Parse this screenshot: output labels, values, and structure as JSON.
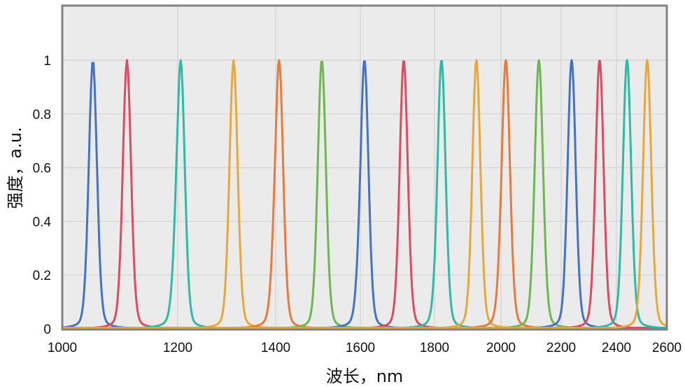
{
  "chart_data": {
    "type": "line",
    "title": "",
    "xlabel": "波长，nm",
    "ylabel": "强度，a.u.",
    "xlim": [
      1000,
      2600
    ],
    "ylim": [
      0,
      1.2
    ],
    "x_ticks": [
      "1000",
      "1200",
      "1400",
      "1600",
      "1800",
      "2000",
      "2200",
      "2400",
      "2600"
    ],
    "x_tick_values": [
      1000,
      1200,
      1400,
      1600,
      1800,
      2000,
      2200,
      2400,
      2600
    ],
    "y_ticks": [
      "0",
      "0.2",
      "0.4",
      "0.6",
      "0.8",
      "1"
    ],
    "y_tick_values": [
      0,
      0.2,
      0.4,
      0.6,
      0.8,
      1
    ],
    "x_scale": "nonuniform",
    "grid": true,
    "legend": "none",
    "plot_background": "#EBEBEB",
    "series": [
      {
        "peak": 1053,
        "fwhm": 17,
        "height": 1,
        "color": "#4472C4"
      },
      {
        "peak": 1112,
        "fwhm": 17,
        "height": 1,
        "color": "#DC4B5E"
      },
      {
        "peak": 1206,
        "fwhm": 20,
        "height": 1,
        "color": "#2BBBA6"
      },
      {
        "peak": 1314,
        "fwhm": 20,
        "height": 1,
        "color": "#E8A93A"
      },
      {
        "peak": 1408,
        "fwhm": 23,
        "height": 1,
        "color": "#E67B3D"
      },
      {
        "peak": 1509,
        "fwhm": 23,
        "height": 1,
        "color": "#6CB84E"
      },
      {
        "peak": 1611,
        "fwhm": 26,
        "height": 1,
        "color": "#4472C4"
      },
      {
        "peak": 1717,
        "fwhm": 26,
        "height": 1,
        "color": "#DC4B5E"
      },
      {
        "peak": 1821,
        "fwhm": 29,
        "height": 1,
        "color": "#2BBBA6"
      },
      {
        "peak": 1926,
        "fwhm": 29,
        "height": 1,
        "color": "#E8A93A"
      },
      {
        "peak": 2016,
        "fwhm": 33,
        "height": 1,
        "color": "#E67B3D"
      },
      {
        "peak": 2126,
        "fwhm": 33,
        "height": 1,
        "color": "#6CB84E"
      },
      {
        "peak": 2238,
        "fwhm": 35,
        "height": 1,
        "color": "#4472C4"
      },
      {
        "peak": 2339,
        "fwhm": 35,
        "height": 1,
        "color": "#DC4B5E"
      },
      {
        "peak": 2442,
        "fwhm": 39,
        "height": 1,
        "color": "#2BBBA6"
      },
      {
        "peak": 2522,
        "fwhm": 39,
        "height": 1,
        "color": "#E8A93A"
      }
    ]
  }
}
